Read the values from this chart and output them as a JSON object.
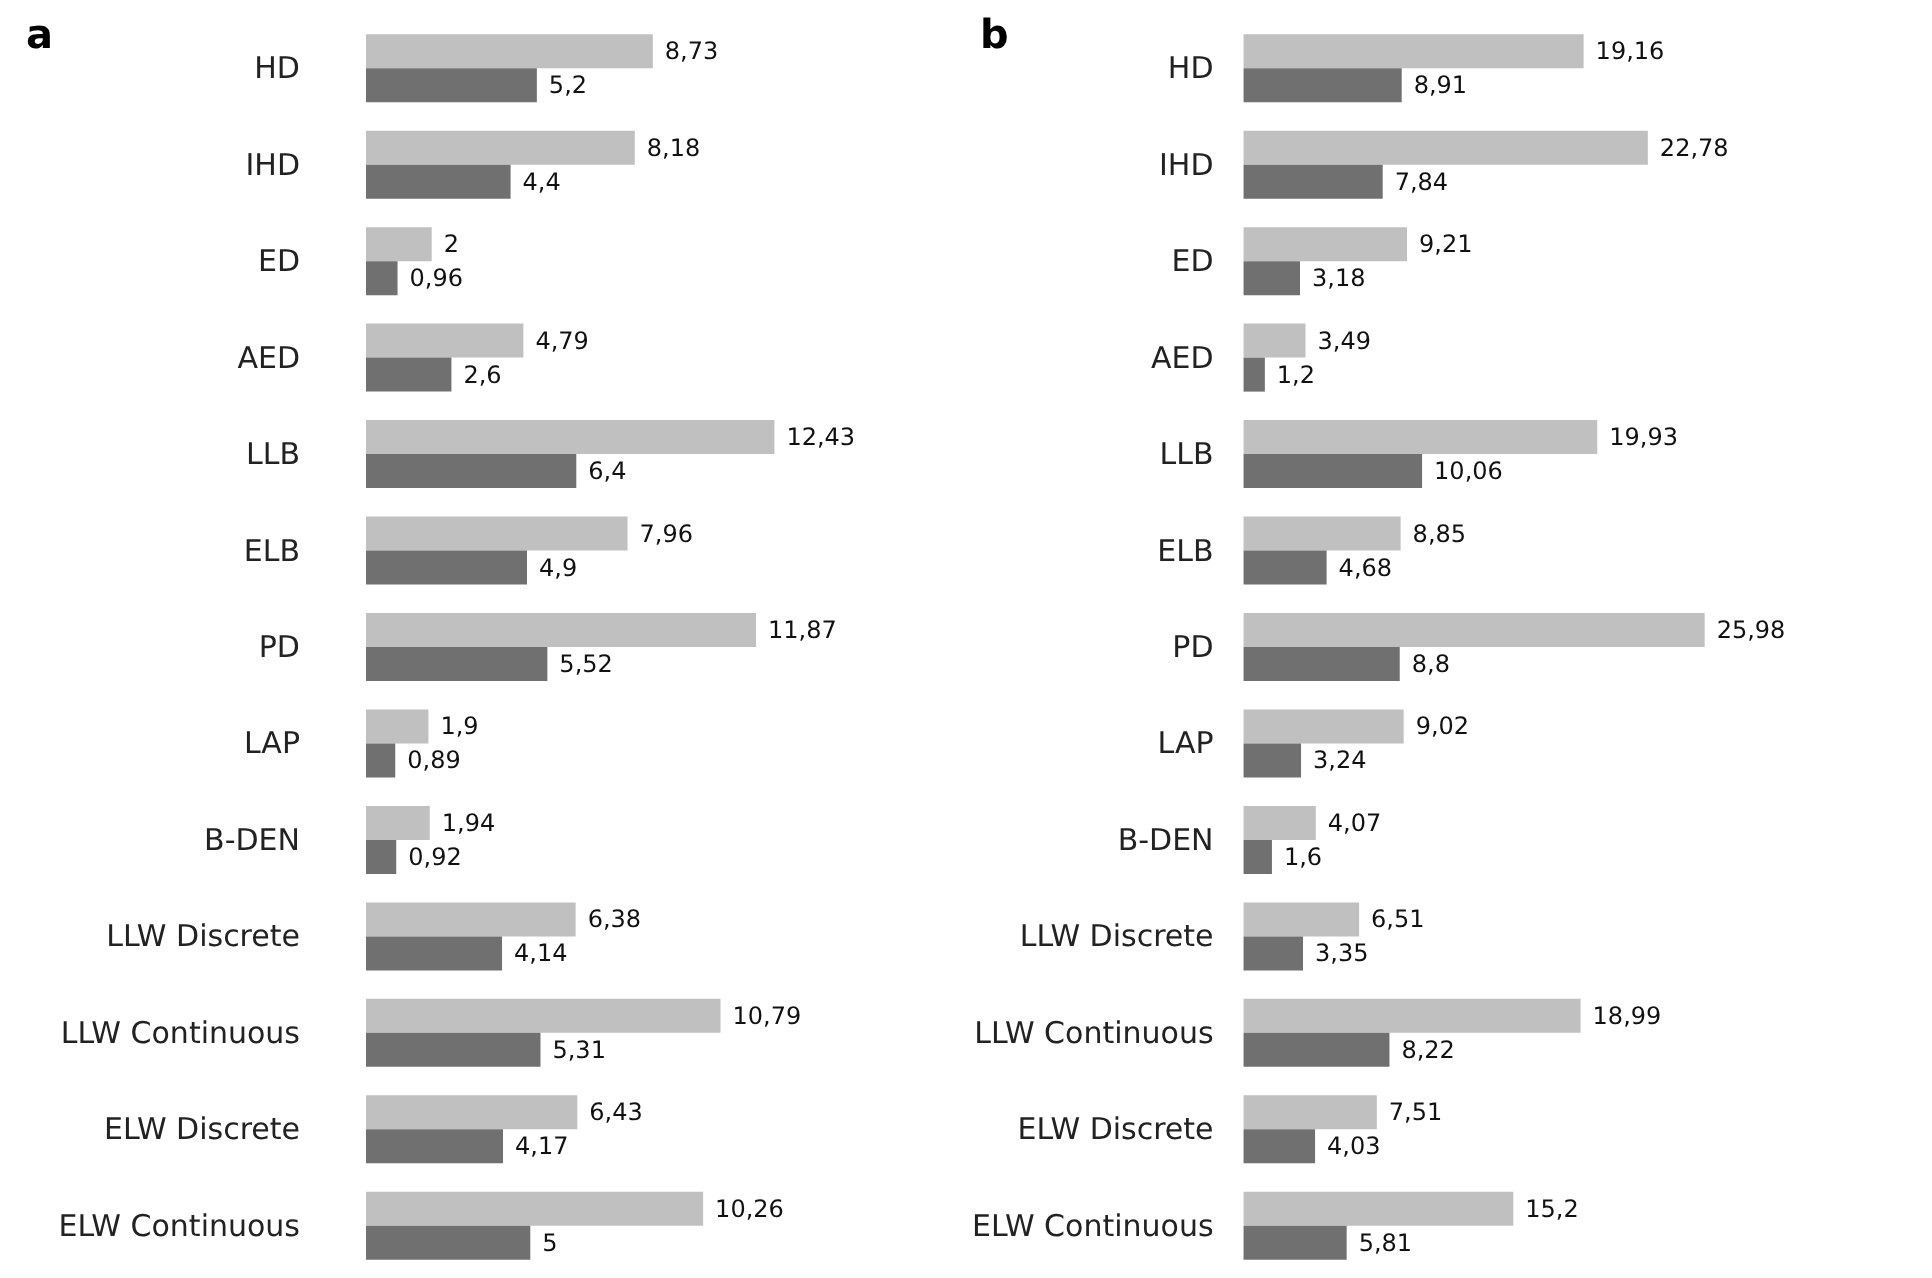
{
  "chart_data": [
    {
      "type": "bar",
      "orientation": "horizontal",
      "title": "a",
      "categories": [
        "HD",
        "IHD",
        "ED",
        "AED",
        "LLB",
        "ELB",
        "PD",
        "LAP",
        "B-DEN",
        "LLW Discrete",
        "LLW Continuous",
        "ELW Discrete",
        "ELW Continuous"
      ],
      "series": [
        {
          "color": "#c0c0c0",
          "values": [
            8.73,
            8.18,
            2,
            4.79,
            12.43,
            7.96,
            11.87,
            1.9,
            1.94,
            6.38,
            10.79,
            6.43,
            10.26
          ],
          "value_labels": [
            "8,73",
            "8,18",
            "2",
            "4,79",
            "12,43",
            "7,96",
            "11,87",
            "1,9",
            "1,94",
            "6,38",
            "10,79",
            "6,43",
            "10,26"
          ]
        },
        {
          "color": "#707070",
          "values": [
            5.2,
            4.4,
            0.96,
            2.6,
            6.4,
            4.9,
            5.52,
            0.89,
            0.92,
            4.14,
            5.31,
            4.17,
            5
          ],
          "value_labels": [
            "5,2",
            "4,4",
            "0,96",
            "2,6",
            "6,4",
            "4,9",
            "5,52",
            "0,89",
            "0,92",
            "4,14",
            "5,31",
            "4,17",
            "5"
          ]
        }
      ]
    },
    {
      "type": "bar",
      "orientation": "horizontal",
      "title": "b",
      "categories": [
        "HD",
        "IHD",
        "ED",
        "AED",
        "LLB",
        "ELB",
        "PD",
        "LAP",
        "B-DEN",
        "LLW Discrete",
        "LLW Continuous",
        "ELW Discrete",
        "ELW Continuous"
      ],
      "series": [
        {
          "color": "#c0c0c0",
          "values": [
            19.16,
            22.78,
            9.21,
            3.49,
            19.93,
            8.85,
            25.98,
            9.02,
            4.07,
            6.51,
            18.99,
            7.51,
            15.2
          ],
          "value_labels": [
            "19,16",
            "22,78",
            "9,21",
            "3,49",
            "19,93",
            "8,85",
            "25,98",
            "9,02",
            "4,07",
            "6,51",
            "18,99",
            "7,51",
            "15,2"
          ]
        },
        {
          "color": "#707070",
          "values": [
            8.91,
            7.84,
            3.18,
            1.2,
            10.06,
            4.68,
            8.8,
            3.24,
            1.6,
            3.35,
            8.22,
            4.03,
            5.81
          ],
          "value_labels": [
            "8,91",
            "7,84",
            "3,18",
            "1,2",
            "10,06",
            "4,68",
            "8,8",
            "3,24",
            "1,6",
            "3,35",
            "8,22",
            "4,03",
            "5,81"
          ]
        }
      ]
    }
  ]
}
